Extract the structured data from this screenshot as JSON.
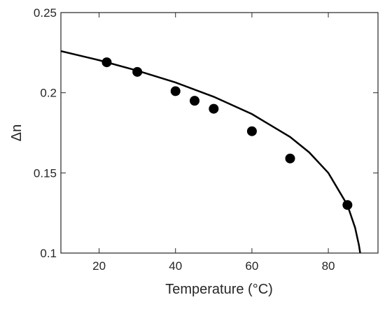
{
  "chart_data": {
    "type": "scatter",
    "xlabel": "Temperature (°C)",
    "ylabel": "Δn",
    "xlim": [
      10,
      93
    ],
    "ylim": [
      0.1,
      0.25
    ],
    "xticks": [
      20,
      40,
      60,
      80
    ],
    "yticks": [
      0.1,
      0.15,
      0.2,
      0.25
    ],
    "series": [
      {
        "type": "scatter",
        "color": "#000000",
        "x": [
          22,
          30,
          40,
          45,
          50,
          60,
          70,
          85
        ],
        "values": [
          0.219,
          0.213,
          0.201,
          0.195,
          0.19,
          0.176,
          0.159,
          0.13
        ]
      },
      {
        "type": "line",
        "color": "#000000",
        "x": [
          10,
          20,
          30,
          40,
          50,
          60,
          70,
          75,
          80,
          85,
          87,
          88,
          88.4
        ],
        "values": [
          0.226,
          0.2203,
          0.2138,
          0.2064,
          0.1975,
          0.1867,
          0.1724,
          0.1628,
          0.15,
          0.1299,
          0.1159,
          0.1051,
          0.099
        ]
      }
    ]
  }
}
